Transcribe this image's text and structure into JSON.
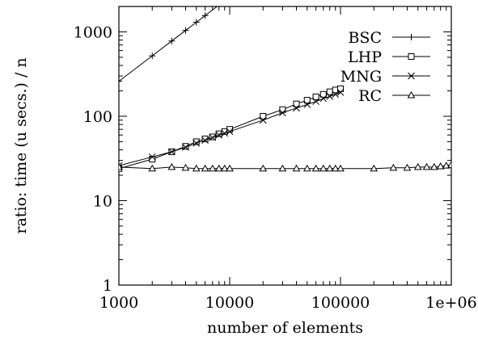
{
  "chart_data": {
    "type": "line",
    "xlabel": "number of elements",
    "ylabel": "ratio:  time (u secs.) / n",
    "x_scale": "log",
    "y_scale": "log",
    "xlim": [
      1000,
      1000000
    ],
    "ylim": [
      1,
      2000
    ],
    "x_ticks": [
      1000,
      10000,
      100000,
      1000000
    ],
    "x_tick_labels": [
      "1000",
      "10000",
      "100000",
      "1e+06"
    ],
    "y_ticks": [
      1,
      10,
      100,
      1000
    ],
    "y_tick_labels": [
      "1",
      "10",
      "100",
      "1000"
    ],
    "grid": false,
    "legend_position": "top-right",
    "series": [
      {
        "name": "BSC",
        "marker": "plus",
        "x": [
          1000,
          2000,
          3000,
          4000,
          5000,
          6000
        ],
        "y": [
          260,
          520,
          780,
          1040,
          1300,
          1560
        ]
      },
      {
        "name": "LHP",
        "marker": "square",
        "x": [
          1000,
          2000,
          3000,
          4000,
          5000,
          6000,
          7000,
          8000,
          9000,
          10000,
          20000,
          30000,
          40000,
          50000,
          60000,
          70000,
          80000,
          90000,
          100000
        ],
        "y": [
          24,
          31,
          38,
          44,
          50,
          54,
          57,
          62,
          66,
          70,
          100,
          120,
          140,
          155,
          170,
          182,
          195,
          205,
          212
        ]
      },
      {
        "name": "MNG",
        "marker": "x",
        "x": [
          1000,
          2000,
          3000,
          4000,
          5000,
          6000,
          7000,
          8000,
          9000,
          10000,
          20000,
          30000,
          40000,
          50000,
          60000,
          70000,
          80000,
          90000,
          100000
        ],
        "y": [
          26,
          33,
          38,
          43,
          48,
          52,
          56,
          60,
          63,
          66,
          90,
          110,
          125,
          138,
          150,
          162,
          172,
          182,
          192
        ]
      },
      {
        "name": "RC",
        "marker": "triangle",
        "x": [
          1000,
          2000,
          3000,
          4000,
          5000,
          6000,
          7000,
          8000,
          9000,
          10000,
          20000,
          30000,
          40000,
          50000,
          60000,
          70000,
          80000,
          90000,
          100000,
          200000,
          300000,
          400000,
          500000,
          600000,
          700000,
          800000,
          900000,
          1000000
        ],
        "y": [
          25,
          24,
          25,
          24.5,
          24,
          24,
          24,
          24,
          24,
          24,
          24,
          24,
          24,
          24,
          24,
          24,
          24,
          24,
          24,
          24,
          24.5,
          24.5,
          25,
          25,
          25,
          25.5,
          26,
          26.5
        ]
      }
    ]
  }
}
